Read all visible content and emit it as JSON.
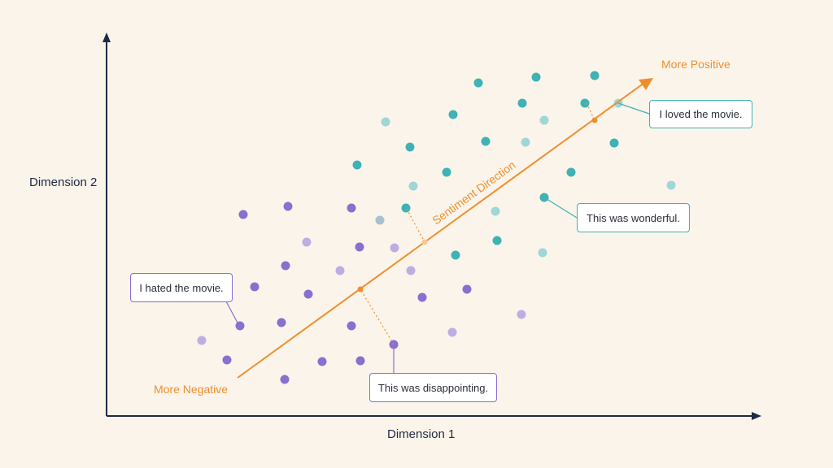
{
  "diagram": {
    "x_axis_label": "Dimension 1",
    "y_axis_label": "Dimension 2",
    "direction_label": "Sentiment Direction",
    "positive_end_label": "More Positive",
    "negative_end_label": "More Negative",
    "callouts": {
      "hated": "I hated the movie.",
      "disappointing": "This was disappointing.",
      "wonderful": "This was wonderful.",
      "loved": "I loved the movie."
    },
    "colors": {
      "background": "#fbf4ea",
      "axis": "#1f2a44",
      "sentiment_direction": "#ee8f2e",
      "negative_point": "#8a6fcf",
      "negative_point_light": "#bcaee3",
      "positive_point": "#3fb2b5",
      "positive_point_light": "#9fd6d7",
      "neutral_point": "#a9c0d4"
    }
  }
}
